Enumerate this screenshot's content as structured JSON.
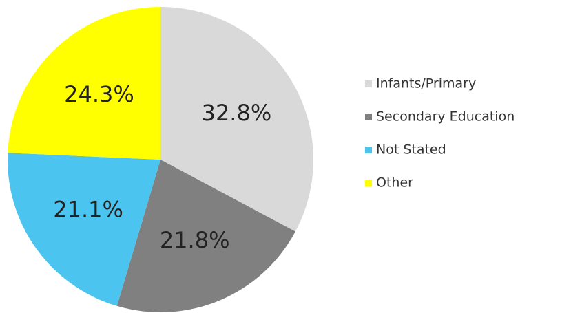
{
  "chart_data": {
    "type": "pie",
    "categories": [
      "Infants/Primary",
      "Secondary Education",
      "Not Stated",
      "Other"
    ],
    "values": [
      32.8,
      21.8,
      21.1,
      24.3
    ],
    "value_labels": [
      "32.8%",
      "21.8%",
      "21.1%",
      "24.3%"
    ],
    "colors": [
      "#d9d9d9",
      "#808080",
      "#4bc4ef",
      "#ffff00"
    ],
    "legend": "right"
  }
}
